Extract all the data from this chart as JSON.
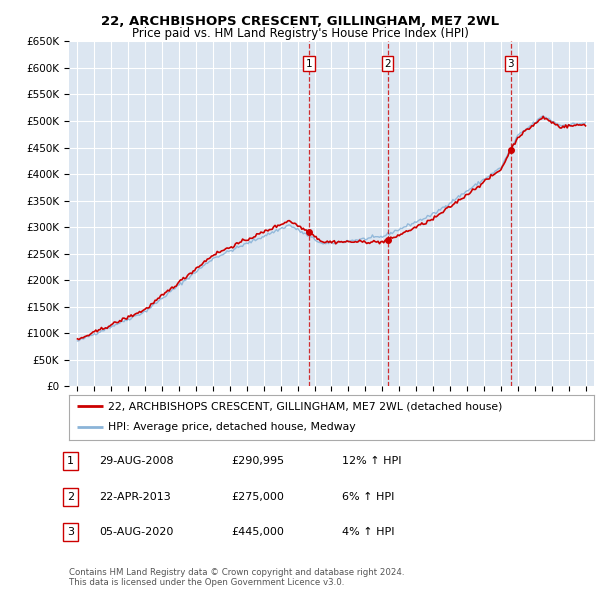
{
  "title": "22, ARCHBISHOPS CRESCENT, GILLINGHAM, ME7 2WL",
  "subtitle": "Price paid vs. HM Land Registry's House Price Index (HPI)",
  "ylabel_ticks": [
    "£0",
    "£50K",
    "£100K",
    "£150K",
    "£200K",
    "£250K",
    "£300K",
    "£350K",
    "£400K",
    "£450K",
    "£500K",
    "£550K",
    "£600K",
    "£650K"
  ],
  "ytick_values": [
    0,
    50000,
    100000,
    150000,
    200000,
    250000,
    300000,
    350000,
    400000,
    450000,
    500000,
    550000,
    600000,
    650000
  ],
  "background_color": "#ffffff",
  "plot_bg_color": "#dce6f1",
  "grid_color": "#ffffff",
  "line1_color": "#cc0000",
  "line2_color": "#8bb4d8",
  "purchase_markers": [
    {
      "label": "1",
      "date_idx": 2008.66,
      "price": 290995
    },
    {
      "label": "2",
      "date_idx": 2013.31,
      "price": 275000
    },
    {
      "label": "3",
      "date_idx": 2020.59,
      "price": 445000
    }
  ],
  "legend_line1": "22, ARCHBISHOPS CRESCENT, GILLINGHAM, ME7 2WL (detached house)",
  "legend_line2": "HPI: Average price, detached house, Medway",
  "table_rows": [
    {
      "num": "1",
      "date": "29-AUG-2008",
      "price": "£290,995",
      "hpi": "12% ↑ HPI"
    },
    {
      "num": "2",
      "date": "22-APR-2013",
      "price": "£275,000",
      "hpi": "6% ↑ HPI"
    },
    {
      "num": "3",
      "date": "05-AUG-2020",
      "price": "£445,000",
      "hpi": "4% ↑ HPI"
    }
  ],
  "footer": "Contains HM Land Registry data © Crown copyright and database right 2024.\nThis data is licensed under the Open Government Licence v3.0.",
  "xmin": 1994.5,
  "xmax": 2025.5,
  "ymin": 0,
  "ymax": 650000
}
